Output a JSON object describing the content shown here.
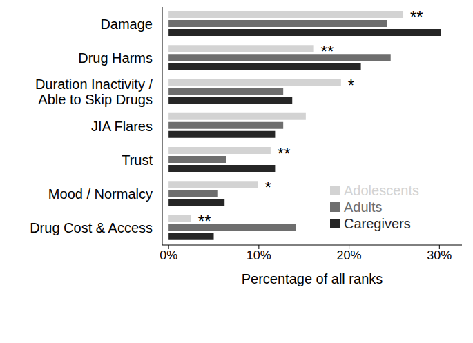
{
  "chart_data": {
    "type": "bar",
    "orientation": "horizontal",
    "x_label": "Percentage of all ranks",
    "categories": [
      "Damage",
      "Drug Harms",
      "Duration Inactivity / Able to Skip Drugs",
      "JIA Flares",
      "Trust",
      "Mood / Normalcy",
      "Drug Cost & Access"
    ],
    "series": [
      {
        "name": "Adolescents",
        "color": "#d3d3d3",
        "values": [
          26.0,
          16.1,
          19.1,
          15.2,
          11.3,
          9.9,
          2.5
        ],
        "annotations": [
          "**",
          "**",
          "*",
          null,
          "**",
          "*",
          "**"
        ]
      },
      {
        "name": "Adults",
        "color": "#6e6e6e",
        "values": [
          24.2,
          24.6,
          12.7,
          12.7,
          6.4,
          5.4,
          14.1
        ]
      },
      {
        "name": "Caregivers",
        "color": "#262626",
        "values": [
          30.2,
          21.3,
          13.7,
          11.8,
          11.8,
          6.2,
          5.0
        ]
      }
    ],
    "xlim": [
      -0.7,
      32.5
    ],
    "xticks": [
      {
        "value": 0,
        "label": "0%"
      },
      {
        "value": 10,
        "label": "10%"
      },
      {
        "value": 20,
        "label": "20%"
      },
      {
        "value": 30,
        "label": "30%"
      }
    ],
    "grid": false,
    "legend": "lower right"
  }
}
